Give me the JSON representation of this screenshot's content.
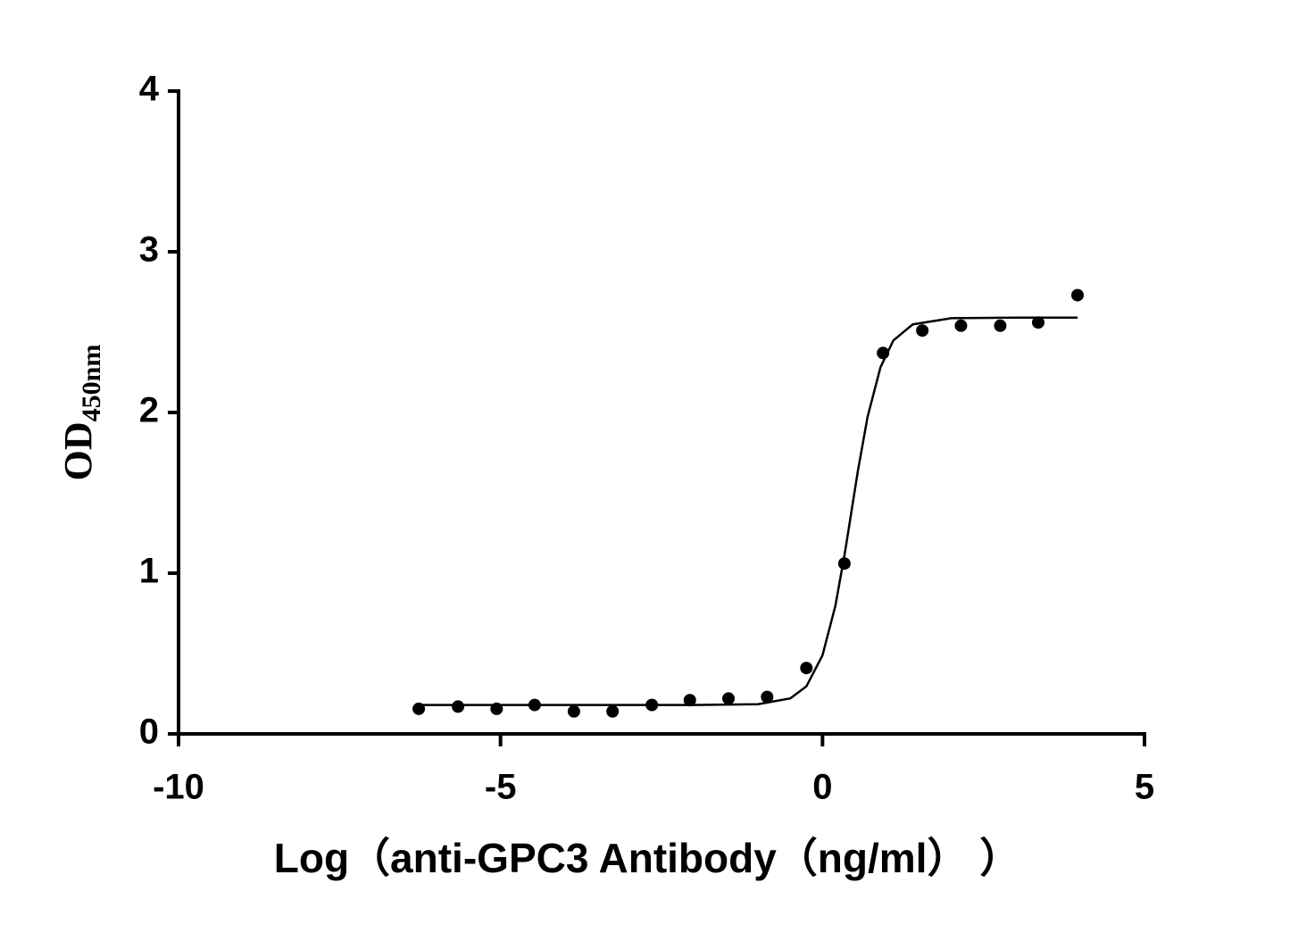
{
  "chart_data": {
    "type": "scatter",
    "ylabel": "OD",
    "ylabel_sub": "450nm",
    "xlabel": "Log（anti-GPC3 Antibody（ng/ml）  ）",
    "xlim": [
      -10,
      5
    ],
    "xticks": [
      -10,
      -5,
      0,
      5
    ],
    "ylim": [
      0,
      4
    ],
    "yticks": [
      0,
      1,
      2,
      3,
      4
    ],
    "grid": false,
    "series": [
      {
        "type": "scatter",
        "color": "#000000",
        "x": [
          -6.27,
          -5.66,
          -5.06,
          -4.47,
          -3.86,
          -3.26,
          -2.65,
          -2.06,
          -1.46,
          -0.86,
          -0.25,
          0.34,
          0.94,
          1.55,
          2.15,
          2.76,
          3.35,
          3.96
        ],
        "values": [
          0.156,
          0.17,
          0.156,
          0.18,
          0.14,
          0.14,
          0.18,
          0.21,
          0.22,
          0.23,
          0.41,
          1.06,
          2.37,
          2.51,
          2.54,
          2.54,
          2.56,
          2.73
        ]
      },
      {
        "type": "line",
        "color": "#000000",
        "x": [
          -6.27,
          -4,
          -2,
          -1,
          -0.5,
          -0.25,
          0,
          0.2,
          0.35,
          0.45,
          0.55,
          0.7,
          0.9,
          1.1,
          1.4,
          2,
          3,
          3.96
        ],
        "values": [
          0.18,
          0.18,
          0.18,
          0.185,
          0.221,
          0.296,
          0.489,
          0.797,
          1.133,
          1.385,
          1.638,
          1.973,
          2.281,
          2.448,
          2.548,
          2.587,
          2.59,
          2.59
        ]
      }
    ]
  }
}
